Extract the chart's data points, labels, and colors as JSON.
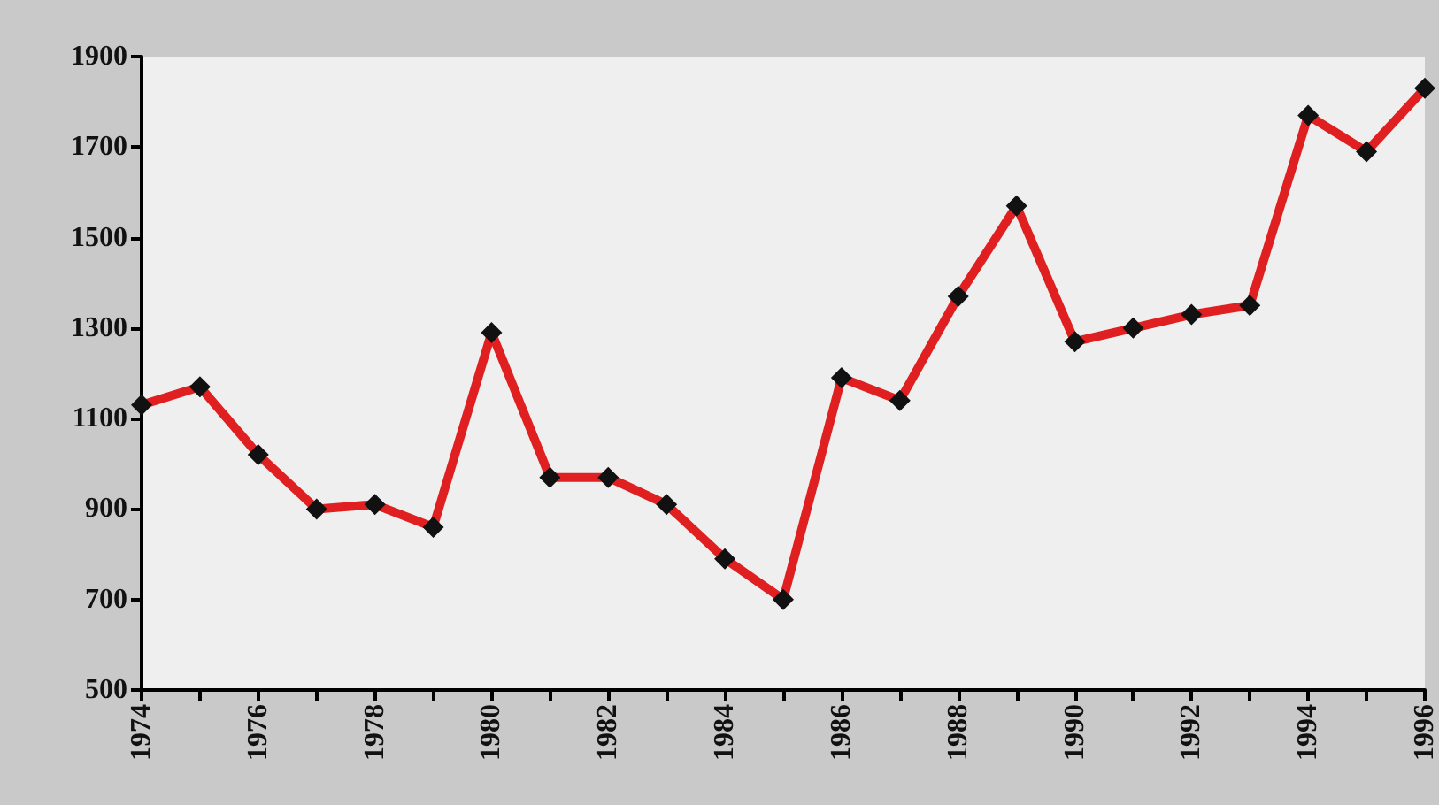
{
  "chart_data": {
    "type": "line",
    "x": [
      1974,
      1975,
      1976,
      1977,
      1978,
      1979,
      1980,
      1981,
      1982,
      1983,
      1984,
      1985,
      1986,
      1987,
      1988,
      1989,
      1990,
      1991,
      1992,
      1993,
      1994,
      1995,
      1996
    ],
    "series": [
      {
        "color": "#e02020",
        "values": [
          1130,
          1170,
          1020,
          900,
          910,
          860,
          1290,
          970,
          970,
          910,
          790,
          700,
          1190,
          1140,
          1370,
          1570,
          1270,
          1300,
          1330,
          1350,
          1770,
          1690,
          1830
        ]
      }
    ],
    "xlim": [
      1974,
      1996
    ],
    "xticks": [
      1974,
      {
        "value": 1975,
        "label": null
      },
      1976,
      {
        "value": 1977,
        "label": null
      },
      1978,
      {
        "value": 1979,
        "label": null
      },
      1980,
      {
        "value": 1981,
        "label": null
      },
      1982,
      {
        "value": 1983,
        "label": null
      },
      1984,
      {
        "value": 1985,
        "label": null
      },
      1986,
      {
        "value": 1987,
        "label": null
      },
      1988,
      {
        "value": 1989,
        "label": null
      },
      1990,
      {
        "value": 1991,
        "label": null
      },
      1992,
      {
        "value": 1993,
        "label": null
      },
      1994,
      {
        "value": 1995,
        "label": null
      },
      1996
    ],
    "ylim": [
      500,
      1900
    ],
    "yticks": [
      500,
      700,
      900,
      1100,
      1300,
      1500,
      1700,
      1900
    ],
    "marker": "diamond",
    "line_style": "solid",
    "grid": false
  }
}
